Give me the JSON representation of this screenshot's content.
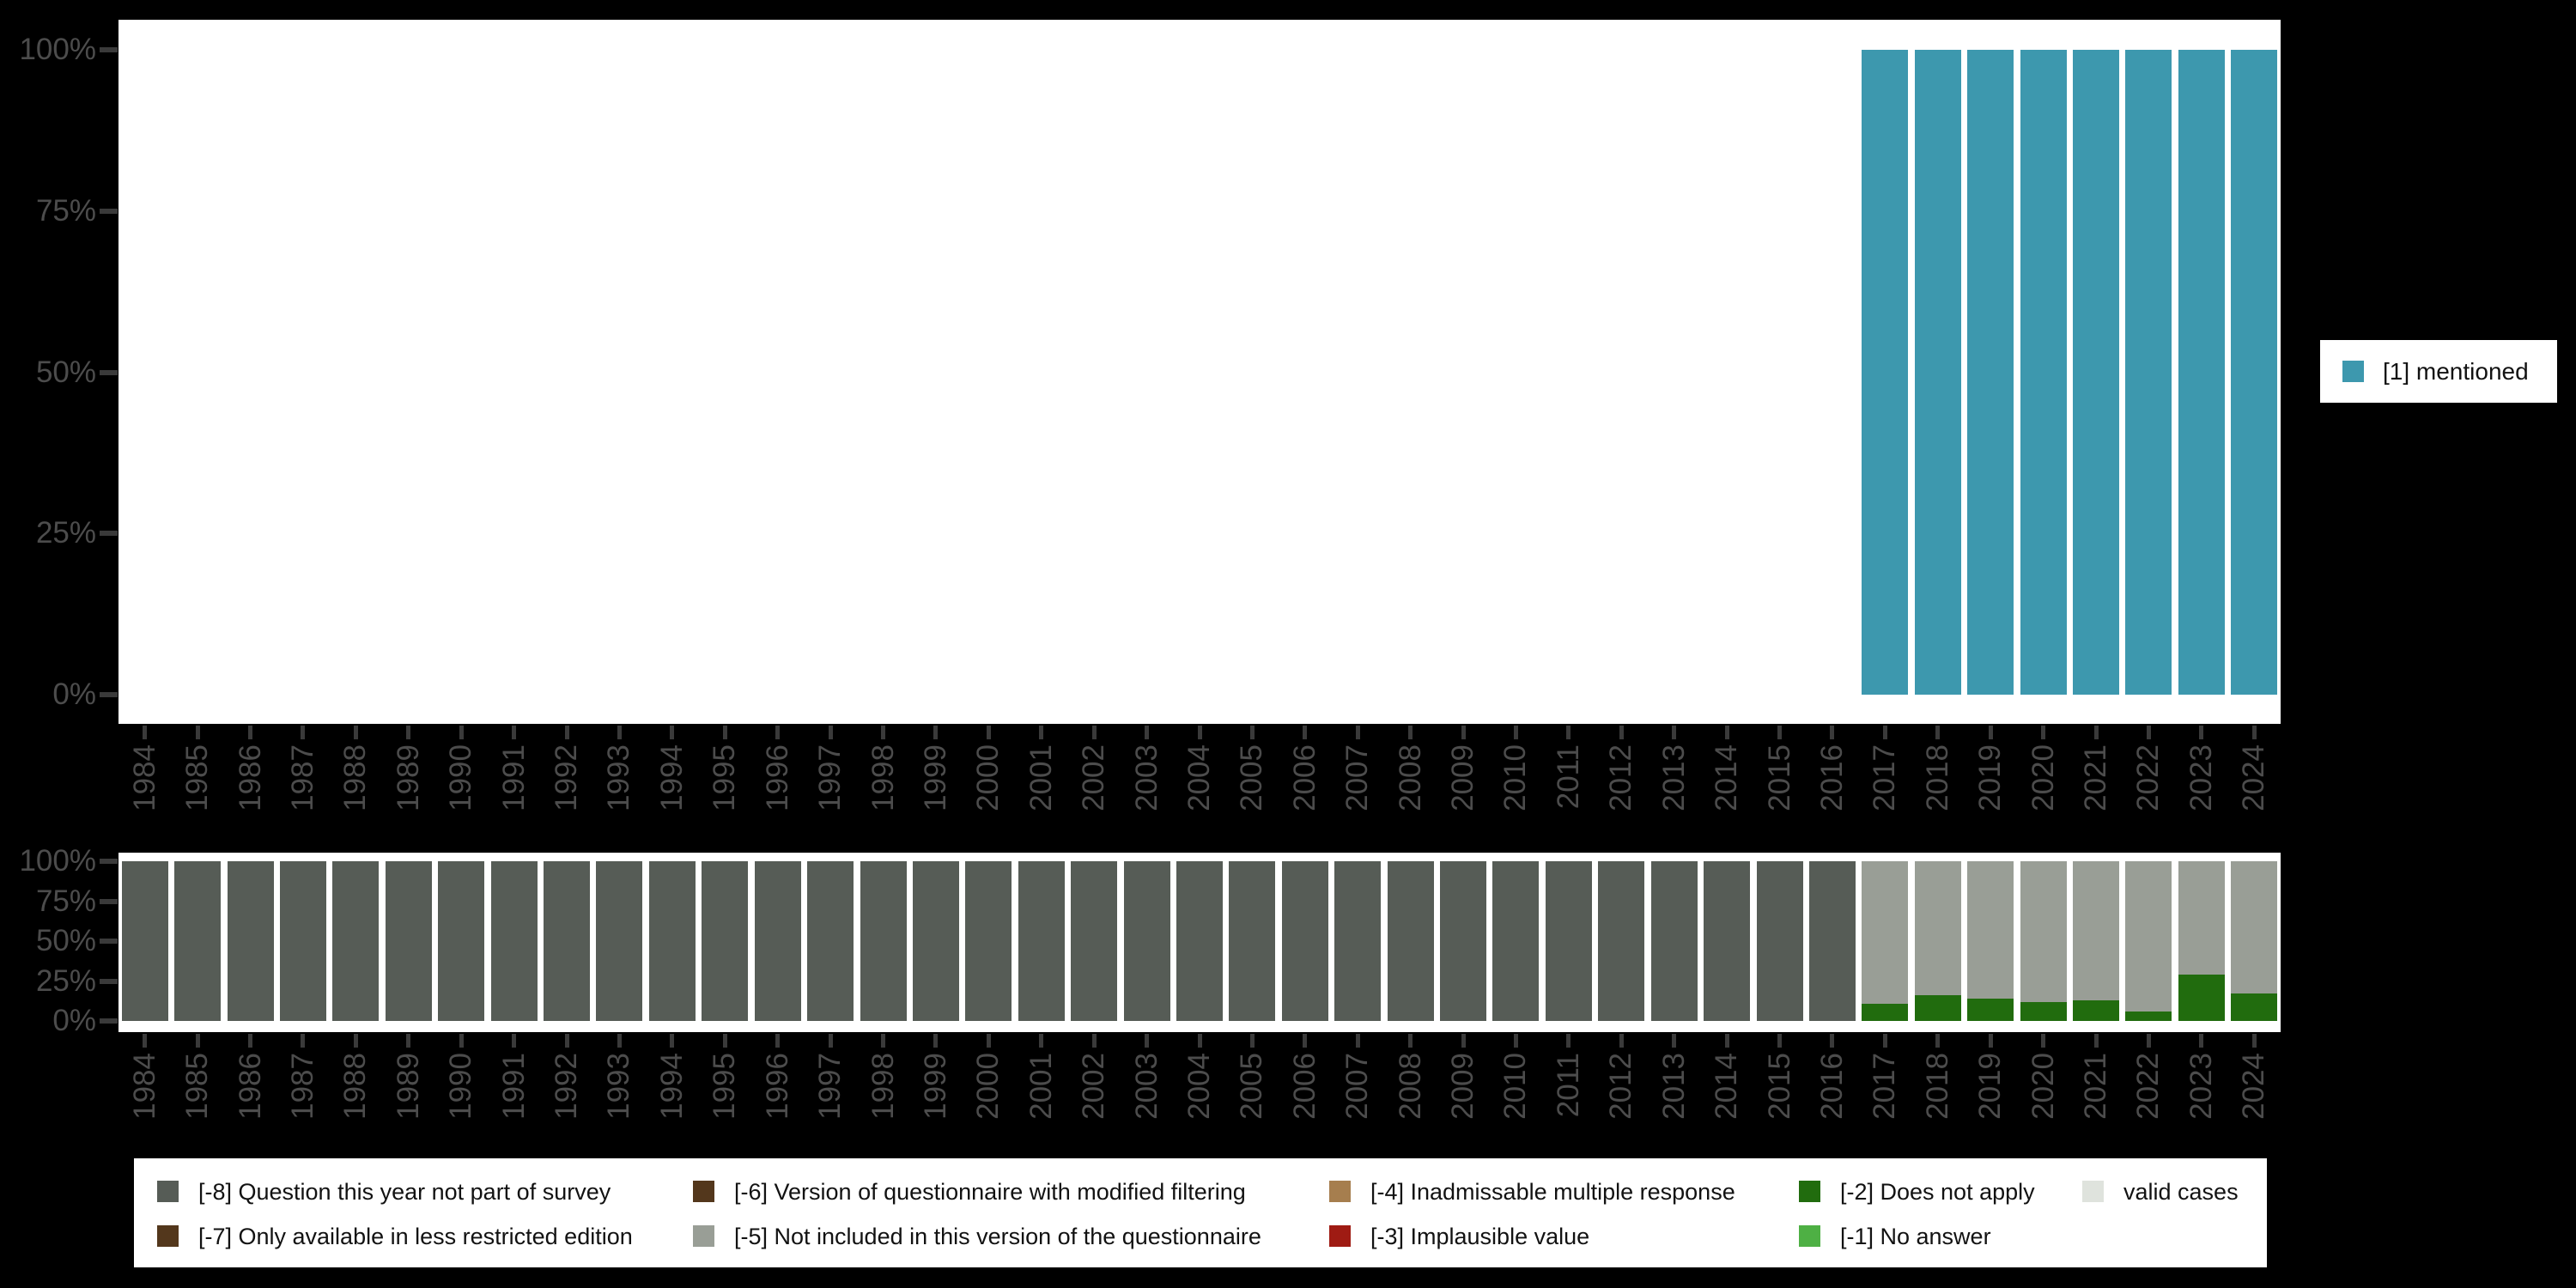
{
  "palette": {
    "background": "#000000",
    "panel": "#ffffff",
    "axis_text": "#4c4c4c",
    "tick": "#3a3a3a",
    "mentioned": "#3d98ae",
    "neg8": "#565c56",
    "neg7": "#53371c",
    "neg6": "#53371c",
    "neg5": "#999e96",
    "neg4": "#a67e4e",
    "neg3": "#9f1b13",
    "neg2": "#216c0e",
    "neg1": "#4eb044",
    "valid": "#dfe3dd"
  },
  "right_legend": {
    "label": "[1] mentioned",
    "color_key": "mentioned"
  },
  "bottom_legend": {
    "items": [
      {
        "label": "[-8] Question this year not part of survey",
        "color_key": "neg8",
        "col": 0,
        "row": 0
      },
      {
        "label": "[-7] Only available in less restricted edition",
        "color_key": "neg7",
        "col": 0,
        "row": 1
      },
      {
        "label": "[-6] Version of questionnaire with modified filtering",
        "color_key": "neg6",
        "col": 1,
        "row": 0
      },
      {
        "label": "[-5] Not included in this version of the questionnaire",
        "color_key": "neg5",
        "col": 1,
        "row": 1
      },
      {
        "label": "[-4] Inadmissable multiple response",
        "color_key": "neg4",
        "col": 2,
        "row": 0
      },
      {
        "label": "[-3] Implausible value",
        "color_key": "neg3",
        "col": 2,
        "row": 1
      },
      {
        "label": "[-2] Does not apply",
        "color_key": "neg2",
        "col": 3,
        "row": 0
      },
      {
        "label": "[-1] No answer",
        "color_key": "neg1",
        "col": 3,
        "row": 1
      },
      {
        "label": "valid cases",
        "color_key": "valid",
        "col": 4,
        "row": 0
      }
    ]
  },
  "chart_data": [
    {
      "type": "bar",
      "title": "",
      "xlabel": "",
      "ylabel": "",
      "ylim": [
        0,
        100
      ],
      "grid": false,
      "legend_position": "right",
      "ytick_values": [
        0,
        25,
        50,
        75,
        100
      ],
      "ytick_labels": [
        "0%",
        "25%",
        "50%",
        "75%",
        "100%"
      ],
      "categories": [
        "1984",
        "1985",
        "1986",
        "1987",
        "1988",
        "1989",
        "1990",
        "1991",
        "1992",
        "1993",
        "1994",
        "1995",
        "1996",
        "1997",
        "1998",
        "1999",
        "2000",
        "2001",
        "2002",
        "2003",
        "2004",
        "2005",
        "2006",
        "2007",
        "2008",
        "2009",
        "2010",
        "2011",
        "2012",
        "2013",
        "2014",
        "2015",
        "2016",
        "2017",
        "2018",
        "2019",
        "2020",
        "2021",
        "2022",
        "2023",
        "2024"
      ],
      "series": [
        {
          "name": "[1] mentioned",
          "color_key": "mentioned",
          "values": [
            0,
            0,
            0,
            0,
            0,
            0,
            0,
            0,
            0,
            0,
            0,
            0,
            0,
            0,
            0,
            0,
            0,
            0,
            0,
            0,
            0,
            0,
            0,
            0,
            0,
            0,
            0,
            0,
            0,
            0,
            0,
            0,
            0,
            100,
            100,
            100,
            100,
            100,
            100,
            100,
            100
          ]
        }
      ]
    },
    {
      "type": "stacked_bar",
      "title": "",
      "xlabel": "",
      "ylabel": "",
      "ylim": [
        0,
        100
      ],
      "grid": false,
      "legend_position": "bottom",
      "ytick_values": [
        0,
        25,
        50,
        75,
        100
      ],
      "ytick_labels": [
        "0%",
        "25%",
        "50%",
        "75%",
        "100%"
      ],
      "categories": [
        "1984",
        "1985",
        "1986",
        "1987",
        "1988",
        "1989",
        "1990",
        "1991",
        "1992",
        "1993",
        "1994",
        "1995",
        "1996",
        "1997",
        "1998",
        "1999",
        "2000",
        "2001",
        "2002",
        "2003",
        "2004",
        "2005",
        "2006",
        "2007",
        "2008",
        "2009",
        "2010",
        "2011",
        "2012",
        "2013",
        "2014",
        "2015",
        "2016",
        "2017",
        "2018",
        "2019",
        "2020",
        "2021",
        "2022",
        "2023",
        "2024"
      ],
      "series": [
        {
          "name": "[-8] Question this year not part of survey",
          "color_key": "neg8",
          "values": [
            100,
            100,
            100,
            100,
            100,
            100,
            100,
            100,
            100,
            100,
            100,
            100,
            100,
            100,
            100,
            100,
            100,
            100,
            100,
            100,
            100,
            100,
            100,
            100,
            100,
            100,
            100,
            100,
            100,
            100,
            100,
            100,
            100,
            0,
            0,
            0,
            0,
            0,
            0,
            0,
            0
          ]
        },
        {
          "name": "[-2] Does not apply",
          "color_key": "neg2",
          "values": [
            0,
            0,
            0,
            0,
            0,
            0,
            0,
            0,
            0,
            0,
            0,
            0,
            0,
            0,
            0,
            0,
            0,
            0,
            0,
            0,
            0,
            0,
            0,
            0,
            0,
            0,
            0,
            0,
            0,
            0,
            0,
            0,
            0,
            11,
            16,
            14,
            12,
            13,
            6,
            29,
            17
          ]
        },
        {
          "name": "[-5] Not included in this version of the questionnaire",
          "color_key": "neg5",
          "values": [
            0,
            0,
            0,
            0,
            0,
            0,
            0,
            0,
            0,
            0,
            0,
            0,
            0,
            0,
            0,
            0,
            0,
            0,
            0,
            0,
            0,
            0,
            0,
            0,
            0,
            0,
            0,
            0,
            0,
            0,
            0,
            0,
            0,
            89,
            84,
            86,
            88,
            87,
            94,
            71,
            83
          ]
        }
      ]
    }
  ]
}
